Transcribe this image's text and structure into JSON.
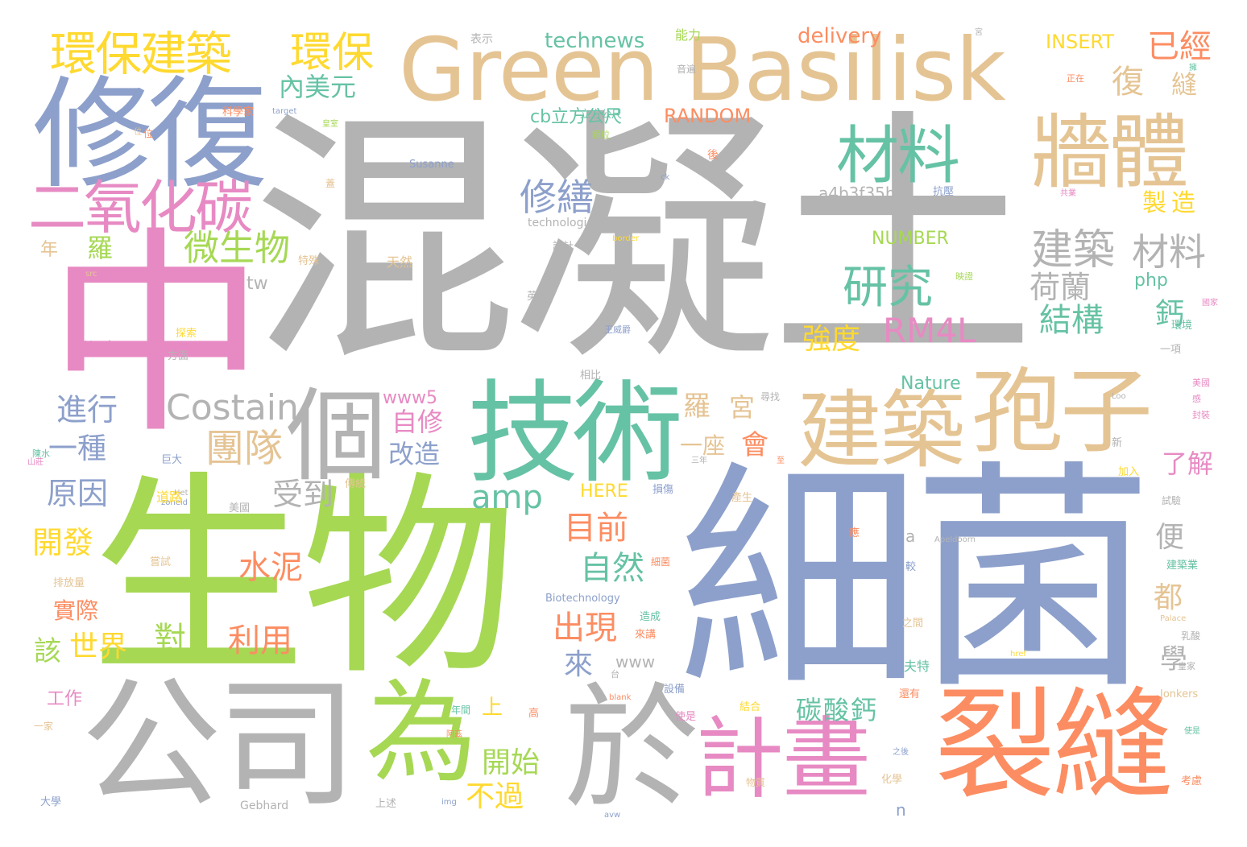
{
  "palette": {
    "gray": "#b3b3b3",
    "tan": "#e5c494",
    "blue": "#8da0cb",
    "teal": "#66c2a5",
    "orange": "#fc8d62",
    "pink": "#e78ac3",
    "green": "#a6d854",
    "yellow": "#ffd92f"
  },
  "words": [
    {
      "text": "混凝土",
      "color": "gray"
    },
    {
      "text": "細菌",
      "color": "blue"
    },
    {
      "text": "生物",
      "color": "green"
    },
    {
      "text": "中",
      "color": "pink"
    },
    {
      "text": "Green Basilisk",
      "color": "tan"
    },
    {
      "text": "修復",
      "color": "blue"
    },
    {
      "text": "公司",
      "color": "gray"
    },
    {
      "text": "裂縫",
      "color": "orange"
    },
    {
      "text": "於",
      "color": "gray"
    },
    {
      "text": "建築",
      "color": "tan"
    },
    {
      "text": "孢子",
      "color": "tan"
    },
    {
      "text": "技術",
      "color": "teal"
    },
    {
      "text": "牆體",
      "color": "tan"
    },
    {
      "text": "計畫",
      "color": "pink"
    },
    {
      "text": "為",
      "color": "green"
    },
    {
      "text": "個",
      "color": "gray"
    },
    {
      "text": "材料",
      "color": "teal"
    },
    {
      "text": "二氧化碳",
      "color": "pink"
    },
    {
      "text": "環保建築",
      "color": "yellow"
    },
    {
      "text": "環保",
      "color": "yellow"
    },
    {
      "text": "研究",
      "color": "teal"
    },
    {
      "text": "修繕",
      "color": "blue"
    },
    {
      "text": "微生物",
      "color": "green"
    },
    {
      "text": "Costain",
      "color": "gray"
    },
    {
      "text": "團隊",
      "color": "tan"
    },
    {
      "text": "一個",
      "color": "gray"
    },
    {
      "text": "建築",
      "color": "gray"
    },
    {
      "text": "材料",
      "color": "gray"
    },
    {
      "text": "荷蘭",
      "color": "gray"
    },
    {
      "text": "RM4L",
      "color": "pink"
    },
    {
      "text": "結構",
      "color": "teal"
    },
    {
      "text": "強度",
      "color": "yellow"
    },
    {
      "text": "內美元",
      "color": "teal"
    },
    {
      "text": "已經",
      "color": "orange"
    },
    {
      "text": "復",
      "color": "tan"
    },
    {
      "text": "縫",
      "color": "tan"
    },
    {
      "text": "製造",
      "color": "yellow"
    },
    {
      "text": "鈣",
      "color": "teal"
    },
    {
      "text": "進行",
      "color": "blue"
    },
    {
      "text": "一種",
      "color": "blue"
    },
    {
      "text": "原因",
      "color": "blue"
    },
    {
      "text": "開發",
      "color": "yellow"
    },
    {
      "text": "受到",
      "color": "gray"
    },
    {
      "text": "自修",
      "color": "pink"
    },
    {
      "text": "改造",
      "color": "blue"
    },
    {
      "text": "amp",
      "color": "teal"
    },
    {
      "text": "目前",
      "color": "orange"
    },
    {
      "text": "自然",
      "color": "teal"
    },
    {
      "text": "水泥",
      "color": "orange"
    },
    {
      "text": "出現",
      "color": "orange"
    },
    {
      "text": "利用",
      "color": "orange"
    },
    {
      "text": "世界",
      "color": "yellow"
    },
    {
      "text": "對",
      "color": "green"
    },
    {
      "text": "該",
      "color": "green"
    },
    {
      "text": "來",
      "color": "blue"
    },
    {
      "text": "上",
      "color": "yellow"
    },
    {
      "text": "開始",
      "color": "green"
    },
    {
      "text": "不過",
      "color": "yellow"
    },
    {
      "text": "碳酸鈣",
      "color": "teal"
    },
    {
      "text": "會",
      "color": "orange"
    },
    {
      "text": "羅",
      "color": "tan"
    },
    {
      "text": "宮",
      "color": "tan"
    },
    {
      "text": "一座",
      "color": "tan"
    },
    {
      "text": "了解",
      "color": "pink"
    },
    {
      "text": "便",
      "color": "gray"
    },
    {
      "text": "都",
      "color": "tan"
    },
    {
      "text": "學",
      "color": "gray"
    },
    {
      "text": "Green Basilisk",
      "color": "tan"
    },
    {
      "text": "technews",
      "color": "teal"
    },
    {
      "text": "delivery",
      "color": "orange"
    },
    {
      "text": "INSERT",
      "color": "yellow"
    },
    {
      "text": "RANDOM",
      "color": "orange"
    },
    {
      "text": "cb立方公尺",
      "color": "teal"
    },
    {
      "text": "a4b3f35b",
      "color": "gray"
    },
    {
      "text": "NUMBER",
      "color": "green"
    },
    {
      "text": "php",
      "color": "teal"
    },
    {
      "text": "tw",
      "color": "gray"
    },
    {
      "text": "Nature",
      "color": "teal"
    },
    {
      "text": "www5",
      "color": "pink"
    },
    {
      "text": "HERE",
      "color": "yellow"
    },
    {
      "text": "www",
      "color": "gray"
    },
    {
      "text": "n",
      "color": "blue"
    },
    {
      "text": "a",
      "color": "gray"
    },
    {
      "text": "工作",
      "color": "pink"
    },
    {
      "text": "實際",
      "color": "orange"
    },
    {
      "text": "年",
      "color": "tan"
    },
    {
      "text": "羅",
      "color": "green"
    },
    {
      "text": "表示",
      "color": "gray"
    },
    {
      "text": "能力",
      "color": "green"
    },
    {
      "text": "Susanne",
      "color": "blue"
    },
    {
      "text": "technologies",
      "color": "gray"
    },
    {
      "text": "Biotechnology",
      "color": "blue"
    },
    {
      "text": "Gebhard",
      "color": "gray"
    },
    {
      "text": "Henk",
      "color": "pink"
    },
    {
      "text": "Apeldoorn",
      "color": "gray"
    },
    {
      "text": "Jonkers",
      "color": "tan"
    },
    {
      "text": "Palace",
      "color": "tan"
    },
    {
      "text": "target",
      "color": "blue"
    },
    {
      "text": "border",
      "color": "yellow"
    },
    {
      "text": "ck",
      "color": "blue"
    },
    {
      "text": "src",
      "color": "tan"
    },
    {
      "text": "blank",
      "color": "orange"
    },
    {
      "text": "img",
      "color": "blue"
    },
    {
      "text": "avw",
      "color": "blue"
    },
    {
      "text": "href",
      "color": "yellow"
    },
    {
      "text": "Loo",
      "color": "gray"
    },
    {
      "text": "Het",
      "color": "gray"
    },
    {
      "text": "zoneid",
      "color": "blue"
    },
    {
      "text": "科學家",
      "color": "orange"
    },
    {
      "text": "音遍",
      "color": "gray"
    },
    {
      "text": "立方公尺",
      "color": "teal"
    },
    {
      "text": "顆粒",
      "color": "green"
    },
    {
      "text": "抗壓",
      "color": "blue"
    },
    {
      "text": "設計",
      "color": "gray"
    },
    {
      "text": "特殊",
      "color": "tan"
    },
    {
      "text": "天然",
      "color": "tan"
    },
    {
      "text": "英國",
      "color": "gray"
    },
    {
      "text": "方面",
      "color": "gray"
    },
    {
      "text": "探索",
      "color": "yellow"
    },
    {
      "text": "映證",
      "color": "green"
    },
    {
      "text": "王威爵",
      "color": "blue"
    },
    {
      "text": "相比",
      "color": "gray"
    },
    {
      "text": "尋找",
      "color": "gray"
    },
    {
      "text": "環境",
      "color": "teal"
    },
    {
      "text": "一項",
      "color": "gray"
    },
    {
      "text": "國家",
      "color": "pink"
    },
    {
      "text": "巨大",
      "color": "blue"
    },
    {
      "text": "道路",
      "color": "yellow"
    },
    {
      "text": "傳統",
      "color": "tan"
    },
    {
      "text": "美國",
      "color": "gray"
    },
    {
      "text": "嘗試",
      "color": "tan"
    },
    {
      "text": "排放量",
      "color": "tan"
    },
    {
      "text": "產生",
      "color": "tan"
    },
    {
      "text": "損傷",
      "color": "blue"
    },
    {
      "text": "試驗",
      "color": "gray"
    },
    {
      "text": "新",
      "color": "gray"
    },
    {
      "text": "加入",
      "color": "yellow"
    },
    {
      "text": "細菌",
      "color": "orange"
    },
    {
      "text": "較",
      "color": "blue"
    },
    {
      "text": "建築業",
      "color": "teal"
    },
    {
      "text": "造成",
      "color": "teal"
    },
    {
      "text": "來講",
      "color": "orange"
    },
    {
      "text": "設備",
      "color": "blue"
    },
    {
      "text": "結合",
      "color": "yellow"
    },
    {
      "text": "之間",
      "color": "tan"
    },
    {
      "text": "夫特",
      "color": "teal"
    },
    {
      "text": "還有",
      "color": "orange"
    },
    {
      "text": "使是",
      "color": "pink"
    },
    {
      "text": "高",
      "color": "orange"
    },
    {
      "text": "年間",
      "color": "teal"
    },
    {
      "text": "化學",
      "color": "tan"
    },
    {
      "text": "物質",
      "color": "tan"
    },
    {
      "text": "上述",
      "color": "gray"
    },
    {
      "text": "大學",
      "color": "blue"
    },
    {
      "text": "一家",
      "color": "tan"
    },
    {
      "text": "乳酸",
      "color": "gray"
    },
    {
      "text": "皇家",
      "color": "gray"
    },
    {
      "text": "考慮",
      "color": "orange"
    },
    {
      "text": "使是",
      "color": "teal"
    },
    {
      "text": "後",
      "color": "orange"
    },
    {
      "text": "位",
      "color": "orange"
    },
    {
      "text": "美國",
      "color": "pink"
    },
    {
      "text": "封裝",
      "color": "pink"
    },
    {
      "text": "感",
      "color": "pink"
    },
    {
      "text": "蓋",
      "color": "tan"
    },
    {
      "text": "正在",
      "color": "orange"
    },
    {
      "text": "應",
      "color": "orange"
    },
    {
      "text": "台",
      "color": "gray"
    },
    {
      "text": "擁",
      "color": "teal"
    },
    {
      "text": "陳水",
      "color": "teal"
    },
    {
      "text": "山莊",
      "color": "pink"
    },
    {
      "text": "三年",
      "color": "gray"
    },
    {
      "text": "皇室",
      "color": "green"
    },
    {
      "text": "至",
      "color": "orange"
    },
    {
      "text": "之後",
      "color": "blue"
    },
    {
      "text": "阿茲",
      "color": "orange"
    },
    {
      "text": "共業",
      "color": "pink"
    },
    {
      "text": "宮",
      "color": "gray"
    },
    {
      "text": "位",
      "color": "tan"
    }
  ]
}
